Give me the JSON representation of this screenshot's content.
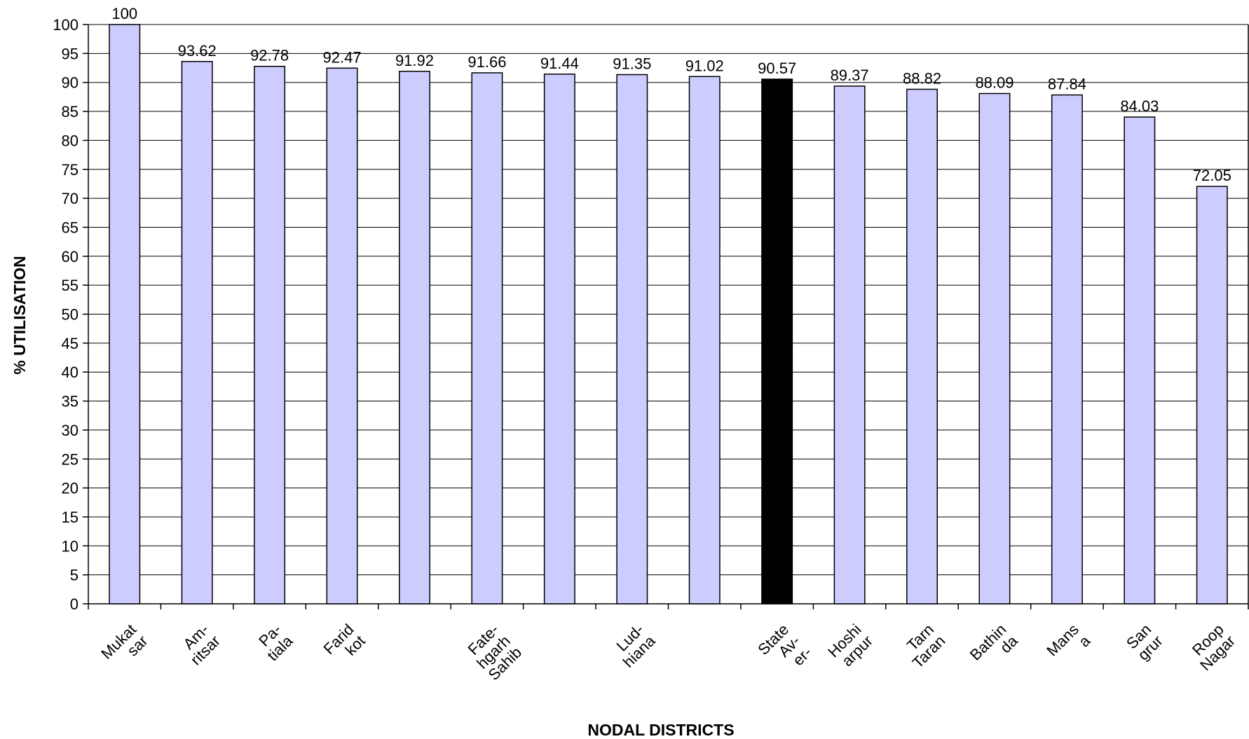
{
  "chart_data": {
    "type": "bar",
    "x_label": "NODAL DISTRICTS",
    "y_label": "% UTILISATION",
    "categories": [
      "Mukat\nsar",
      "Am-\nritsar",
      "Pa-\ntiala",
      "Farid\nkot",
      null,
      "Fate-\nhgarh\nSahib",
      null,
      "Lud-\nhiana",
      null,
      "State\nAv-\ner-",
      "Hoshi\narpur",
      "Tarn\nTaran",
      "Bathin\nda",
      "Mans\na",
      "San\ngrur",
      "Roop\nNagar"
    ],
    "values": [
      100,
      93.62,
      92.78,
      92.47,
      91.92,
      91.66,
      91.44,
      91.35,
      91.02,
      90.57,
      89.37,
      88.82,
      88.09,
      87.84,
      84.03,
      72.05
    ],
    "colors": [
      "#ccccff",
      "#ccccff",
      "#ccccff",
      "#ccccff",
      "#ccccff",
      "#ccccff",
      "#ccccff",
      "#ccccff",
      "#ccccff",
      "#000000",
      "#ccccff",
      "#ccccff",
      "#ccccff",
      "#ccccff",
      "#ccccff",
      "#ccccff"
    ],
    "ylim": [
      0,
      100
    ],
    "yticks": [
      0,
      5,
      10,
      15,
      20,
      25,
      30,
      35,
      40,
      45,
      50,
      55,
      60,
      65,
      70,
      75,
      80,
      85,
      90,
      95,
      100
    ],
    "grid": true
  }
}
